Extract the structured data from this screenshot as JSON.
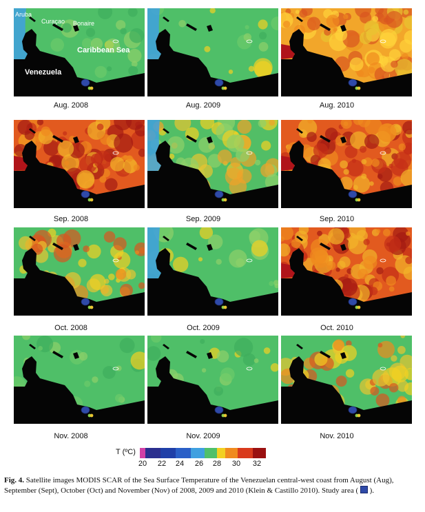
{
  "map_labels": {
    "aruba": "Aruba",
    "curacao": "Curaçao",
    "bonaire": "Bonaire",
    "sea": "Caribbean Sea",
    "country": "Venezuela"
  },
  "panels": [
    {
      "label": "Aug. 2008",
      "dominant": "green",
      "icon": "sst-map-image"
    },
    {
      "label": "Aug. 2009",
      "dominant": "green",
      "icon": "sst-map-image"
    },
    {
      "label": "Aug. 2010",
      "dominant": "orange",
      "icon": "sst-map-image"
    },
    {
      "label": "Sep. 2008",
      "dominant": "red-orange",
      "icon": "sst-map-image"
    },
    {
      "label": "Sep. 2009",
      "dominant": "green-yellow",
      "icon": "sst-map-image"
    },
    {
      "label": "Sep. 2010",
      "dominant": "red-orange",
      "icon": "sst-map-image"
    },
    {
      "label": "Oct. 2008",
      "dominant": "green-orange",
      "icon": "sst-map-image"
    },
    {
      "label": "Oct. 2009",
      "dominant": "green",
      "icon": "sst-map-image"
    },
    {
      "label": "Oct. 2010",
      "dominant": "red-orange",
      "icon": "sst-map-image"
    },
    {
      "label": "Nov. 2008",
      "dominant": "green",
      "icon": "sst-map-image"
    },
    {
      "label": "Nov. 2009",
      "dominant": "green",
      "icon": "sst-map-image"
    },
    {
      "label": "Nov. 2010",
      "dominant": "green-orange",
      "icon": "sst-map-image"
    }
  ],
  "legend": {
    "title": "T (ºC)",
    "ticks": [
      "20",
      "22",
      "24",
      "26",
      "28",
      "30",
      "32"
    ],
    "colors": [
      "#d23fa6",
      "#2b2f8f",
      "#1f3fa8",
      "#2a5fc7",
      "#3fa0e0",
      "#4fc06a",
      "#f2d022",
      "#f08a1e",
      "#d93a1c",
      "#9a1010"
    ]
  },
  "caption": {
    "bold": "Fig. 4.",
    "text": " Satellite images MODIS SCAR of the Sea Surface Temperature of the Venezuelan central-west coast from August (Aug), September (Sept), October (Oct) and November (Nov) of 2008, 2009 and 2010 (Klein & Castillo 2010). Study area (",
    "end": ")."
  }
}
